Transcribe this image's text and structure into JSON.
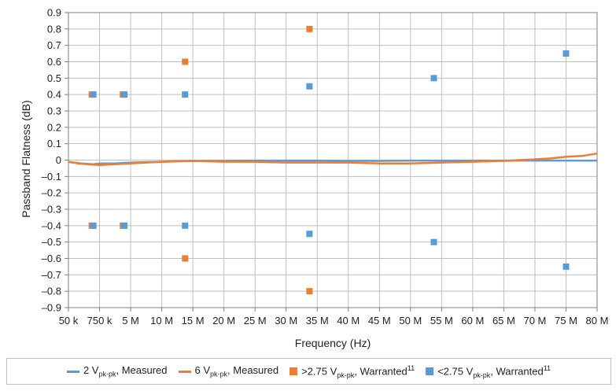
{
  "chart_data": {
    "type": "line",
    "title": "",
    "xlabel": "Frequency (Hz)",
    "ylabel": "Passband Flatness (dB)",
    "ylim": [
      -0.9,
      0.9
    ],
    "yticks": [
      "0.9",
      "0.8",
      "0.7",
      "0.6",
      "0.5",
      "0.4",
      "0.3",
      "0.2",
      "0.1",
      "0",
      "–0.1",
      "–0.2",
      "–0.3",
      "–0.4",
      "–0.5",
      "–0.6",
      "–0.7",
      "–0.8",
      "–0.9"
    ],
    "ytick_values": [
      0.9,
      0.8,
      0.7,
      0.6,
      0.5,
      0.4,
      0.3,
      0.2,
      0.1,
      0,
      -0.1,
      -0.2,
      -0.3,
      -0.4,
      -0.5,
      -0.6,
      -0.7,
      -0.8,
      -0.9
    ],
    "xticks": [
      "50 k",
      "750 k",
      "5 M",
      "10 M",
      "15 M",
      "20 M",
      "25 M",
      "30 M",
      "35 M",
      "40 M",
      "45 M",
      "50 M",
      "55 M",
      "60 M",
      "65 M",
      "70 M",
      "75 M",
      "80 M"
    ],
    "grid": true,
    "legend_position": "bottom",
    "series": [
      {
        "name": "2 V",
        "sub": "pk-pk",
        "suffix": ", Measured",
        "sup": "",
        "kind": "line",
        "color": "#5b9bd5",
        "x": [
          0,
          0.4,
          0.8,
          1,
          1.5,
          2,
          3,
          4,
          5,
          6,
          7,
          8,
          9,
          10,
          11,
          12,
          13,
          14,
          15,
          16,
          17
        ],
        "y": [
          -0.01,
          -0.02,
          -0.025,
          -0.02,
          -0.02,
          -0.015,
          -0.01,
          -0.005,
          -0.005,
          -0.003,
          -0.003,
          -0.003,
          -0.005,
          -0.005,
          -0.003,
          -0.003,
          -0.003,
          -0.003,
          -0.003,
          -0.003,
          -0.003
        ]
      },
      {
        "name": "6 V",
        "sub": "pk-pk",
        "suffix": ", Measured",
        "sup": "",
        "kind": "line",
        "color": "#ed7d31",
        "x": [
          0,
          0.3,
          0.6,
          1,
          1.5,
          2,
          2.5,
          3,
          4,
          5,
          6,
          7,
          8,
          9,
          10,
          11,
          12,
          13,
          14,
          14.5,
          15,
          15.5,
          16,
          16.5,
          17
        ],
        "y": [
          -0.01,
          -0.02,
          -0.025,
          -0.03,
          -0.025,
          -0.02,
          -0.015,
          -0.01,
          -0.005,
          -0.01,
          -0.01,
          -0.015,
          -0.015,
          -0.015,
          -0.02,
          -0.02,
          -0.015,
          -0.01,
          -0.005,
          0,
          0.005,
          0.01,
          0.02,
          0.025,
          0.04
        ]
      },
      {
        "name": ">2.75 V",
        "sub": "pk-pk",
        "suffix": ", Warranted",
        "sup": "11",
        "kind": "marker",
        "color": "#ed7d31",
        "x": [
          0.75,
          0.75,
          1.75,
          1.75,
          3.75,
          3.75,
          7.75,
          7.75
        ],
        "y": [
          0.4,
          -0.4,
          0.4,
          -0.4,
          0.6,
          -0.6,
          0.8,
          -0.8
        ]
      },
      {
        "name": "<2.75 V",
        "sub": "pk-pk",
        "suffix": ", Warranted",
        "sup": "11",
        "kind": "marker",
        "color": "#5b9bd5",
        "x": [
          0.8,
          0.8,
          1.8,
          1.8,
          3.75,
          3.75,
          7.75,
          7.75,
          11.75,
          11.75,
          16,
          16
        ],
        "y": [
          0.4,
          -0.4,
          0.4,
          -0.4,
          0.4,
          -0.4,
          0.45,
          -0.45,
          0.5,
          -0.5,
          0.65,
          -0.65
        ]
      }
    ]
  }
}
